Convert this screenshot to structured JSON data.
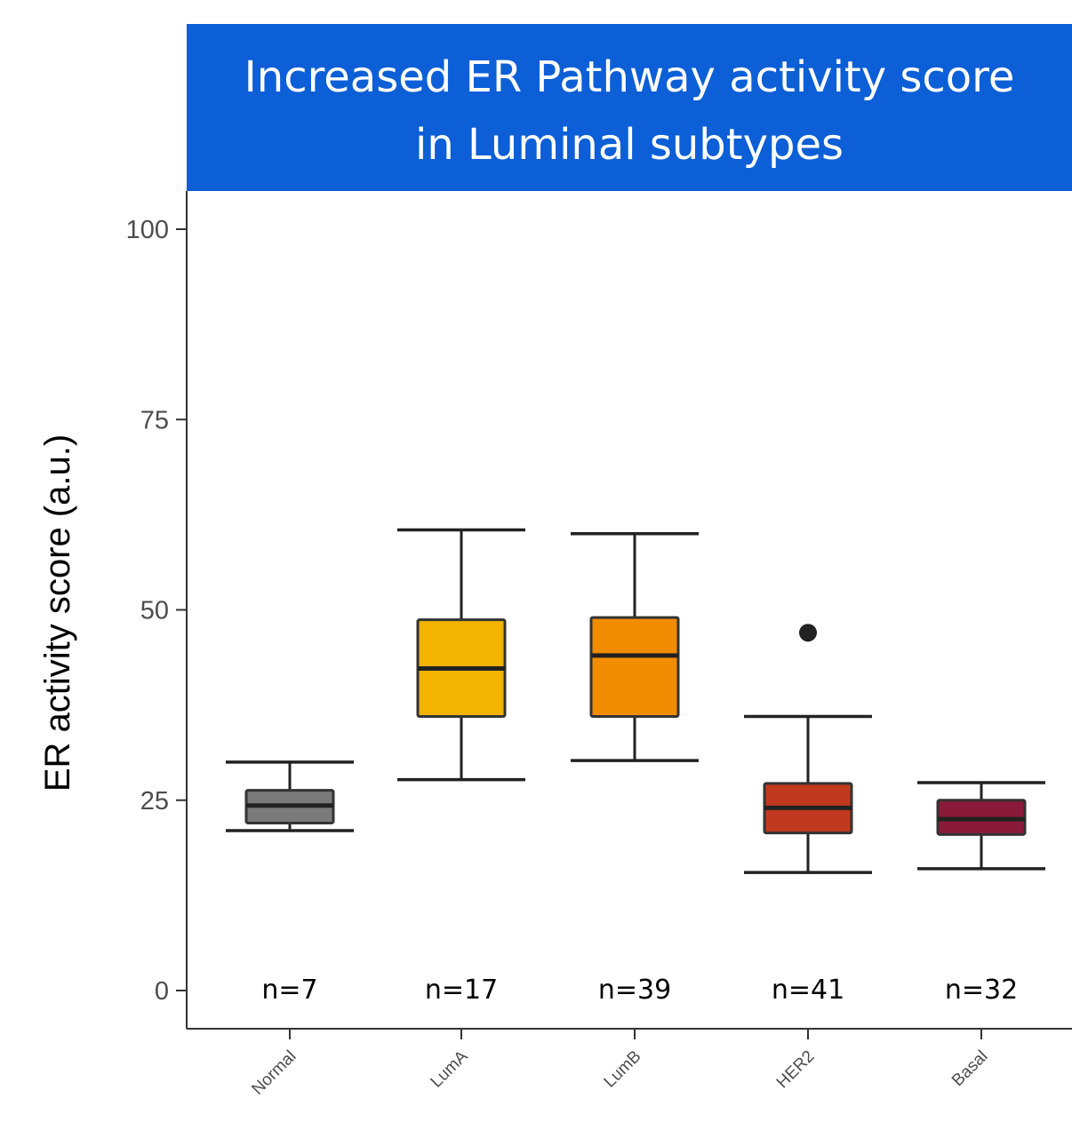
{
  "banner": {
    "line1": "Increased ER Pathway activity score",
    "line2": "in Luminal subtypes",
    "color": "#0c5fd6"
  },
  "chart_data": {
    "type": "boxplot",
    "title": "Increased ER Pathway activity score in Luminal subtypes",
    "ylabel": "ER activity score (a.u.)",
    "xlabel": "",
    "ylim": [
      -5,
      105
    ],
    "yticks": [
      0,
      25,
      50,
      75,
      100
    ],
    "grid": false,
    "categories": [
      "Normal",
      "LumA",
      "LumB",
      "HER2",
      "Basal"
    ],
    "counts": [
      "n=7",
      "n=17",
      "n=39",
      "n=41",
      "n=32"
    ],
    "boxes": [
      {
        "category": "Normal",
        "whisker_low": 21,
        "q1": 22,
        "median": 24.3,
        "q3": 26.3,
        "whisker_high": 30,
        "outliers": [],
        "color": "#7a7a7a"
      },
      {
        "category": "LumA",
        "whisker_low": 27.7,
        "q1": 36,
        "median": 42.3,
        "q3": 48.7,
        "whisker_high": 60.5,
        "outliers": [],
        "color": "#f2b400"
      },
      {
        "category": "LumB",
        "whisker_low": 30.2,
        "q1": 36,
        "median": 44,
        "q3": 49,
        "whisker_high": 60,
        "outliers": [],
        "color": "#f28c00"
      },
      {
        "category": "HER2",
        "whisker_low": 15.5,
        "q1": 20.7,
        "median": 24,
        "q3": 27.2,
        "whisker_high": 36,
        "outliers": [
          47
        ],
        "color": "#c0391e"
      },
      {
        "category": "Basal",
        "whisker_low": 16,
        "q1": 20.5,
        "median": 22.5,
        "q3": 25,
        "whisker_high": 27.3,
        "outliers": [],
        "color": "#8b1a3a"
      }
    ]
  }
}
